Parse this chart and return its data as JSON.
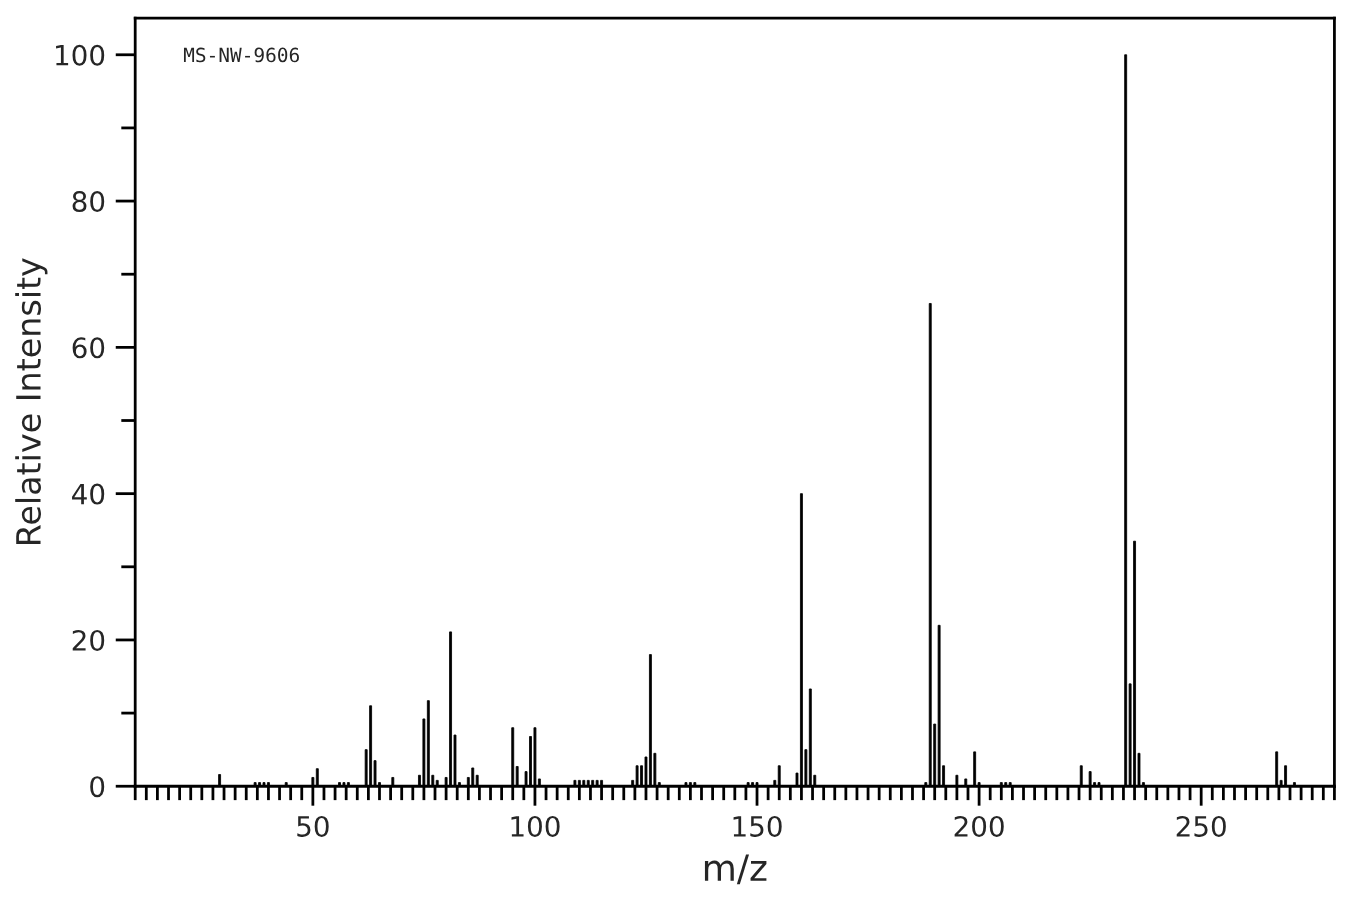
{
  "chart_data": {
    "type": "bar",
    "xlabel": "m/z",
    "ylabel": "Relative Intensity",
    "annotations": [
      "MS-NW-9606"
    ],
    "x": [
      29,
      37,
      38,
      39,
      40,
      44,
      50,
      51,
      56,
      57,
      58,
      62,
      63,
      64,
      65,
      68,
      74,
      75,
      76,
      77,
      78,
      80,
      81,
      82,
      83,
      85,
      86,
      87,
      95,
      96,
      98,
      99,
      100,
      101,
      109,
      110,
      111,
      112,
      113,
      114,
      115,
      122,
      123,
      124,
      125,
      126,
      127,
      128,
      134,
      135,
      136,
      148,
      149,
      150,
      154,
      155,
      159,
      160,
      161,
      162,
      163,
      188,
      189,
      190,
      191,
      192,
      195,
      197,
      199,
      200,
      205,
      206,
      207,
      223,
      225,
      226,
      227,
      233,
      234,
      235,
      236,
      237,
      267,
      268,
      269,
      271
    ],
    "values": [
      1.6,
      0.5,
      0.5,
      0.5,
      0.5,
      0.5,
      1.2,
      2.4,
      0.5,
      0.5,
      0.5,
      5,
      11,
      3.5,
      0.5,
      1.2,
      1.5,
      9.2,
      11.7,
      1.5,
      0.8,
      1.2,
      21.1,
      7,
      0.5,
      1.2,
      2.5,
      1.5,
      8,
      2.7,
      2,
      6.8,
      8,
      1,
      0.8,
      0.8,
      0.8,
      0.8,
      0.8,
      0.8,
      0.8,
      0.8,
      2.8,
      2.8,
      4,
      18,
      4.5,
      0.5,
      0.5,
      0.5,
      0.5,
      0.5,
      0.5,
      0.5,
      0.8,
      2.8,
      1.8,
      40,
      5,
      13.3,
      1.5,
      0.5,
      66,
      8.5,
      22,
      2.8,
      1.5,
      1,
      4.7,
      0.5,
      0.5,
      0.5,
      0.5,
      2.8,
      2,
      0.5,
      0.5,
      100,
      14,
      33.5,
      4.5,
      0.5,
      4.7,
      0.8,
      2.8,
      0.5
    ],
    "color": "#000000",
    "xlim": [
      10,
      280
    ],
    "ylim": [
      0,
      105
    ],
    "xticks": [
      50,
      100,
      150,
      200,
      250
    ],
    "yticks": [
      0,
      20,
      40,
      60,
      80,
      100
    ],
    "grid": false,
    "legend": false
  }
}
